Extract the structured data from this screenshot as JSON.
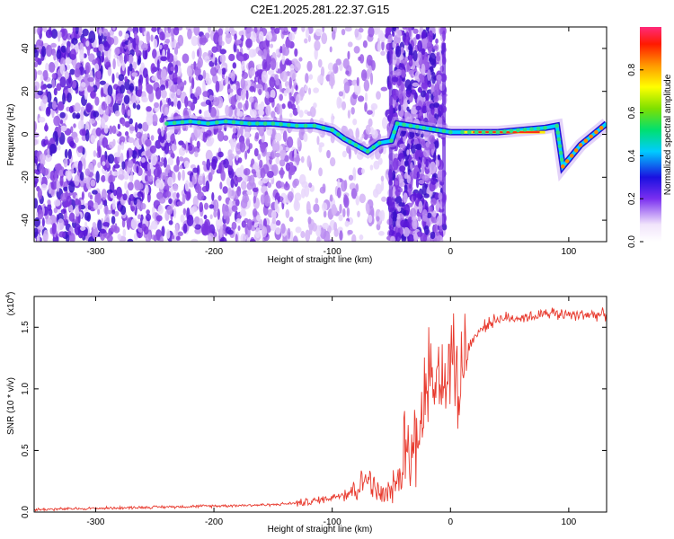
{
  "chart_data": [
    {
      "type": "heatmap",
      "title": "C2E1.2025.281.22.37.G15",
      "xlabel": "Height of straight line (km)",
      "ylabel": "Frequency (Hz)",
      "xlim": [
        -352,
        132
      ],
      "ylim": [
        -50,
        50
      ],
      "xticks": [
        -300,
        -200,
        -100,
        0,
        100
      ],
      "yticks": [
        -40,
        -20,
        0,
        20,
        40
      ],
      "colorbar": {
        "label": "Normalized spectral amplitude",
        "range": [
          0,
          1
        ],
        "ticks": [
          0.0,
          0.2,
          0.4,
          0.6,
          0.8
        ],
        "tick_labels": [
          "0.0",
          "0.2",
          "0.4",
          "0.6",
          "0.8"
        ]
      },
      "ridge_track": {
        "x": [
          -240,
          -220,
          -205,
          -190,
          -170,
          -150,
          -130,
          -115,
          -100,
          -90,
          -80,
          -70,
          -60,
          -50,
          -45,
          0,
          10,
          40,
          80,
          90,
          95,
          110,
          132
        ],
        "y": [
          5,
          6,
          5,
          6,
          5,
          5,
          4,
          4,
          2,
          -2,
          -5,
          -8,
          -4,
          -3,
          5,
          1,
          1,
          1,
          3,
          4,
          -15,
          -5,
          5
        ]
      }
    },
    {
      "type": "line",
      "xlabel": "Height of straight line (km)",
      "ylabel": "SNR (10 * v/v)",
      "multiplier": "(x10",
      "multiplier_exponent": "4",
      "xlim": [
        -352,
        132
      ],
      "ylim": [
        0,
        1.75
      ],
      "xticks": [
        -300,
        -200,
        -100,
        0,
        100
      ],
      "yticks": [
        0.0,
        0.5,
        1.0,
        1.5
      ],
      "ytick_labels": [
        "0.0",
        "0.5",
        "1.0",
        "1.5"
      ],
      "series": [
        {
          "name": "SNR",
          "color": "#e83a2e",
          "x": [
            -352,
            -300,
            -250,
            -200,
            -150,
            -120,
            -100,
            -85,
            -75,
            -70,
            -65,
            -55,
            -45,
            -35,
            -28,
            -22,
            -15,
            -8,
            0,
            10,
            20,
            30,
            40,
            60,
            80,
            100,
            132
          ],
          "y": [
            0.02,
            0.03,
            0.04,
            0.05,
            0.06,
            0.08,
            0.12,
            0.17,
            0.22,
            0.3,
            0.18,
            0.12,
            0.25,
            0.38,
            0.65,
            0.9,
            1.05,
            1.1,
            1.05,
            1.25,
            1.42,
            1.52,
            1.57,
            1.58,
            1.6,
            1.61,
            1.6
          ]
        }
      ]
    }
  ]
}
